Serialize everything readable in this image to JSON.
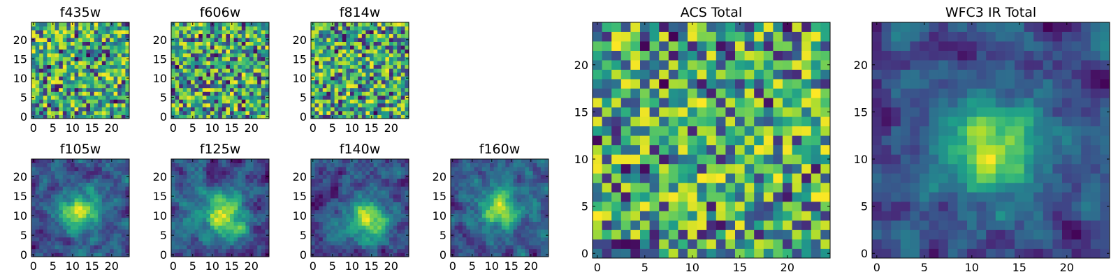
{
  "chart_data": [
    {
      "type": "heatmap",
      "title": "f435w",
      "grid_size": 25,
      "xlim": [
        0,
        24
      ],
      "ylim": [
        0,
        24
      ],
      "x_ticks": [
        0,
        5,
        10,
        15,
        20
      ],
      "y_ticks": [
        0,
        5,
        10,
        15,
        20
      ],
      "x_tick_labels": [
        "0",
        "5",
        "10",
        "15",
        "20"
      ],
      "y_tick_labels": [
        "0",
        "5",
        "10",
        "15",
        "20"
      ],
      "colormap": "viridis",
      "pattern": "noise",
      "peak": [
        12,
        14
      ],
      "seed": 11
    },
    {
      "type": "heatmap",
      "title": "f606w",
      "grid_size": 25,
      "xlim": [
        0,
        24
      ],
      "ylim": [
        0,
        24
      ],
      "x_ticks": [
        0,
        5,
        10,
        15,
        20
      ],
      "y_ticks": [
        0,
        5,
        10,
        15,
        20
      ],
      "x_tick_labels": [
        "0",
        "5",
        "10",
        "15",
        "20"
      ],
      "y_tick_labels": [
        "0",
        "5",
        "10",
        "15",
        "20"
      ],
      "colormap": "viridis",
      "pattern": "noise",
      "peak": [
        12,
        14
      ],
      "seed": 23
    },
    {
      "type": "heatmap",
      "title": "f814w",
      "grid_size": 25,
      "xlim": [
        0,
        24
      ],
      "ylim": [
        0,
        24
      ],
      "x_ticks": [
        0,
        5,
        10,
        15,
        20
      ],
      "y_ticks": [
        0,
        5,
        10,
        15,
        20
      ],
      "x_tick_labels": [
        "0",
        "5",
        "10",
        "15",
        "20"
      ],
      "y_tick_labels": [
        "0",
        "5",
        "10",
        "15",
        "20"
      ],
      "colormap": "viridis",
      "pattern": "noise",
      "peak": [
        13,
        12
      ],
      "seed": 37
    },
    {
      "type": "heatmap",
      "title": "f105w",
      "grid_size": 25,
      "xlim": [
        0,
        24
      ],
      "ylim": [
        0,
        24
      ],
      "x_ticks": [
        0,
        5,
        10,
        15,
        20
      ],
      "y_ticks": [
        0,
        5,
        10,
        15,
        20
      ],
      "x_tick_labels": [
        "0",
        "5",
        "10",
        "15",
        "20"
      ],
      "y_tick_labels": [
        "0",
        "5",
        "10",
        "15",
        "20"
      ],
      "colormap": "viridis",
      "pattern": "blob",
      "peak": [
        12,
        11
      ],
      "seed": 41
    },
    {
      "type": "heatmap",
      "title": "f125w",
      "grid_size": 25,
      "xlim": [
        0,
        24
      ],
      "ylim": [
        0,
        24
      ],
      "x_ticks": [
        0,
        5,
        10,
        15,
        20
      ],
      "y_ticks": [
        0,
        5,
        10,
        15,
        20
      ],
      "x_tick_labels": [
        "0",
        "5",
        "10",
        "15",
        "20"
      ],
      "y_tick_labels": [
        "0",
        "5",
        "10",
        "15",
        "20"
      ],
      "colormap": "viridis",
      "pattern": "blob",
      "peak": [
        13,
        10
      ],
      "seed": 53
    },
    {
      "type": "heatmap",
      "title": "f140w",
      "grid_size": 25,
      "xlim": [
        0,
        24
      ],
      "ylim": [
        0,
        24
      ],
      "x_ticks": [
        0,
        5,
        10,
        15,
        20
      ],
      "y_ticks": [
        0,
        5,
        10,
        15,
        20
      ],
      "x_tick_labels": [
        "0",
        "5",
        "10",
        "15",
        "20"
      ],
      "y_tick_labels": [
        "0",
        "5",
        "10",
        "15",
        "20"
      ],
      "colormap": "viridis",
      "pattern": "blob",
      "peak": [
        14,
        9
      ],
      "seed": 67
    },
    {
      "type": "heatmap",
      "title": "f160w",
      "grid_size": 25,
      "xlim": [
        0,
        24
      ],
      "ylim": [
        0,
        24
      ],
      "x_ticks": [
        0,
        5,
        10,
        15,
        20
      ],
      "y_ticks": [
        0,
        5,
        10,
        15,
        20
      ],
      "x_tick_labels": [
        "0",
        "5",
        "10",
        "15",
        "20"
      ],
      "y_tick_labels": [
        "0",
        "5",
        "10",
        "15",
        "20"
      ],
      "colormap": "viridis",
      "pattern": "blob",
      "peak": [
        12,
        12
      ],
      "seed": 79
    },
    {
      "type": "heatmap",
      "title": "ACS Total",
      "grid_size": 25,
      "xlim": [
        0,
        24
      ],
      "ylim": [
        0,
        24
      ],
      "x_ticks": [
        0,
        5,
        10,
        15,
        20
      ],
      "y_ticks": [
        0,
        5,
        10,
        15,
        20
      ],
      "x_tick_labels": [
        "0",
        "5",
        "10",
        "15",
        "20"
      ],
      "y_tick_labels": [
        "0",
        "5",
        "10",
        "15",
        "20"
      ],
      "colormap": "viridis",
      "pattern": "noise",
      "peak": [
        12,
        12
      ],
      "seed": 97
    },
    {
      "type": "heatmap",
      "title": "WFC3 IR Total",
      "grid_size": 25,
      "xlim": [
        0,
        24
      ],
      "ylim": [
        0,
        24
      ],
      "x_ticks": [
        0,
        5,
        10,
        15,
        20
      ],
      "y_ticks": [
        0,
        5,
        10,
        15,
        20
      ],
      "x_tick_labels": [
        "0",
        "5",
        "10",
        "15",
        "20"
      ],
      "y_tick_labels": [
        "0",
        "5",
        "10",
        "15",
        "20"
      ],
      "colormap": "viridis",
      "pattern": "blob",
      "peak": [
        12,
        11
      ],
      "seed": 113
    }
  ]
}
